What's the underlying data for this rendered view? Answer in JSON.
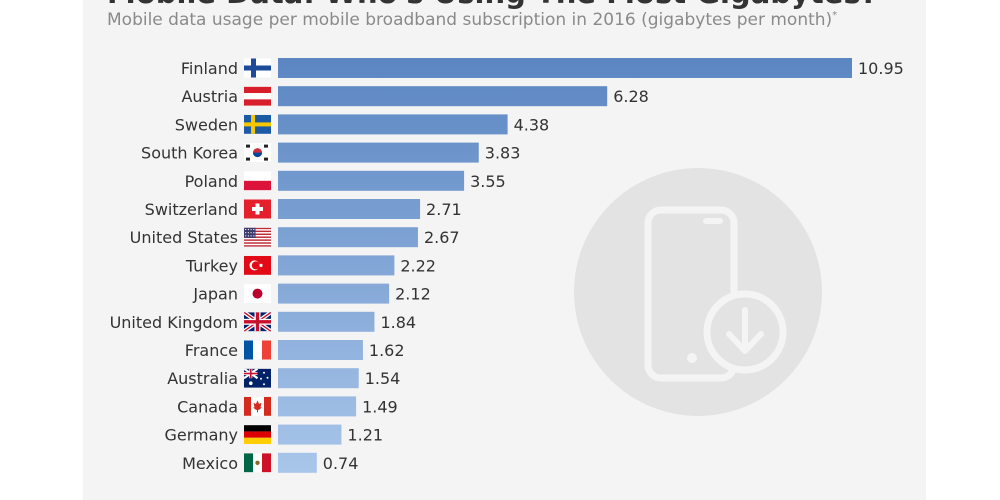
{
  "header": {
    "title": "Mobile Data: Who's Using The Most Gigabytes?",
    "subtitle": "Mobile data usage per mobile broadband subscription in 2016 (gigabytes per month)",
    "subtitle_mark": "*"
  },
  "colors": {
    "bar_top": "#5b86c2",
    "bar_bottom": "#a9c6ea",
    "card_background": "#f4f4f4",
    "watermark": "#e3e3e3"
  },
  "watermark_icon": "phone-download-icon",
  "chart_data": {
    "type": "bar",
    "orientation": "horizontal",
    "title": "Mobile Data: Who's Using The Most Gigabytes?",
    "subtitle": "Mobile data usage per mobile broadband subscription in 2016 (gigabytes per month)",
    "categories": [
      "Finland",
      "Austria",
      "Sweden",
      "South Korea",
      "Poland",
      "Switzerland",
      "United States",
      "Turkey",
      "Japan",
      "United Kingdom",
      "France",
      "Australia",
      "Canada",
      "Germany",
      "Mexico"
    ],
    "flags": [
      "finland-flag-icon",
      "austria-flag-icon",
      "sweden-flag-icon",
      "south-korea-flag-icon",
      "poland-flag-icon",
      "switzerland-flag-icon",
      "united-states-flag-icon",
      "turkey-flag-icon",
      "japan-flag-icon",
      "united-kingdom-flag-icon",
      "france-flag-icon",
      "australia-flag-icon",
      "canada-flag-icon",
      "germany-flag-icon",
      "mexico-flag-icon"
    ],
    "values": [
      10.95,
      6.28,
      4.38,
      3.83,
      3.55,
      2.71,
      2.67,
      2.22,
      2.12,
      1.84,
      1.62,
      1.54,
      1.49,
      1.21,
      0.74
    ],
    "value_labels": [
      "10.95",
      "6.28",
      "4.38",
      "3.83",
      "3.55",
      "2.71",
      "2.67",
      "2.22",
      "2.12",
      "1.84",
      "1.62",
      "1.54",
      "1.49",
      "1.21",
      "0.74"
    ],
    "xlabel": "",
    "ylabel": "",
    "xlim": [
      0,
      10.95
    ],
    "grid": false,
    "legend": "none"
  }
}
